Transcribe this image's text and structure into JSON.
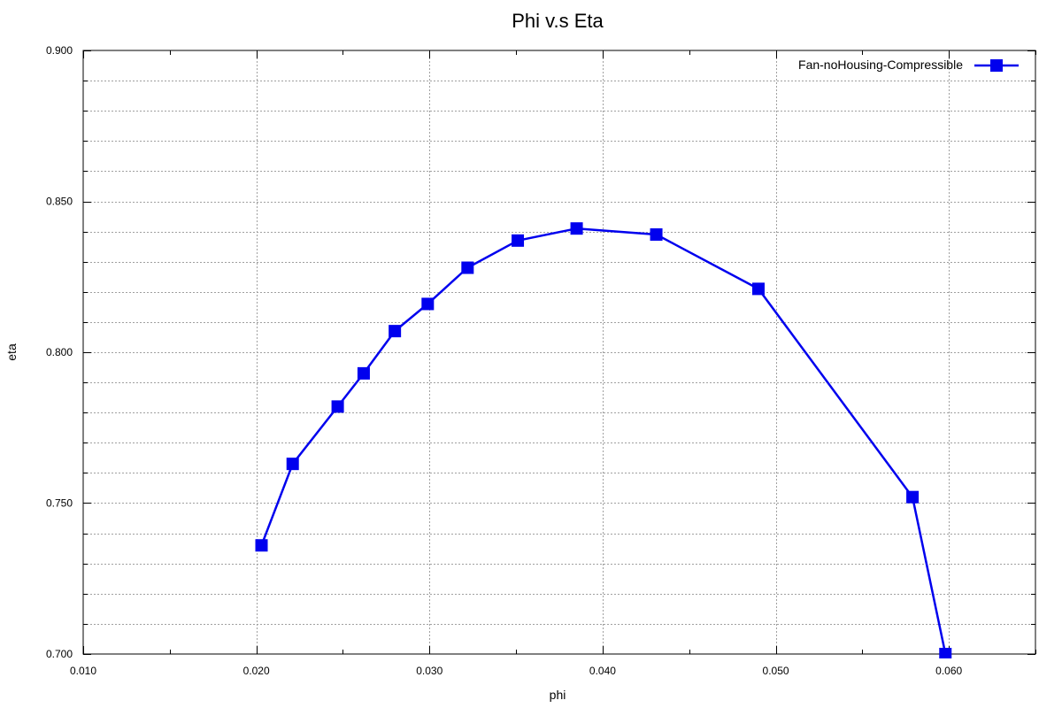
{
  "chart_data": {
    "type": "line",
    "title": "Phi v.s Eta",
    "xlabel": "phi",
    "ylabel": "eta",
    "xlim": [
      0.01,
      0.065
    ],
    "ylim": [
      0.7,
      0.9
    ],
    "xticks": [
      0.01,
      0.02,
      0.03,
      0.04,
      0.05,
      0.06
    ],
    "xtick_labels": [
      "0.010",
      "0.020",
      "0.030",
      "0.040",
      "0.050",
      "0.060"
    ],
    "yticks": [
      0.7,
      0.75,
      0.8,
      0.85,
      0.9
    ],
    "ytick_labels": [
      "0.700",
      "0.750",
      "0.800",
      "0.850",
      "0.900"
    ],
    "x_minor_step": 0.005,
    "y_minor_step": 0.01,
    "grid": true,
    "legend_position": "top-right",
    "series": [
      {
        "name": "Fan-noHousing-Compressible",
        "color": "#0000ee",
        "marker": "square",
        "points": [
          [
            0.0203,
            0.736
          ],
          [
            0.0221,
            0.763
          ],
          [
            0.0247,
            0.782
          ],
          [
            0.0262,
            0.793
          ],
          [
            0.028,
            0.807
          ],
          [
            0.0299,
            0.816
          ],
          [
            0.0322,
            0.828
          ],
          [
            0.0351,
            0.837
          ],
          [
            0.0385,
            0.841
          ],
          [
            0.0431,
            0.839
          ],
          [
            0.049,
            0.821
          ],
          [
            0.0579,
            0.752
          ],
          [
            0.0598,
            0.7
          ]
        ]
      }
    ]
  }
}
